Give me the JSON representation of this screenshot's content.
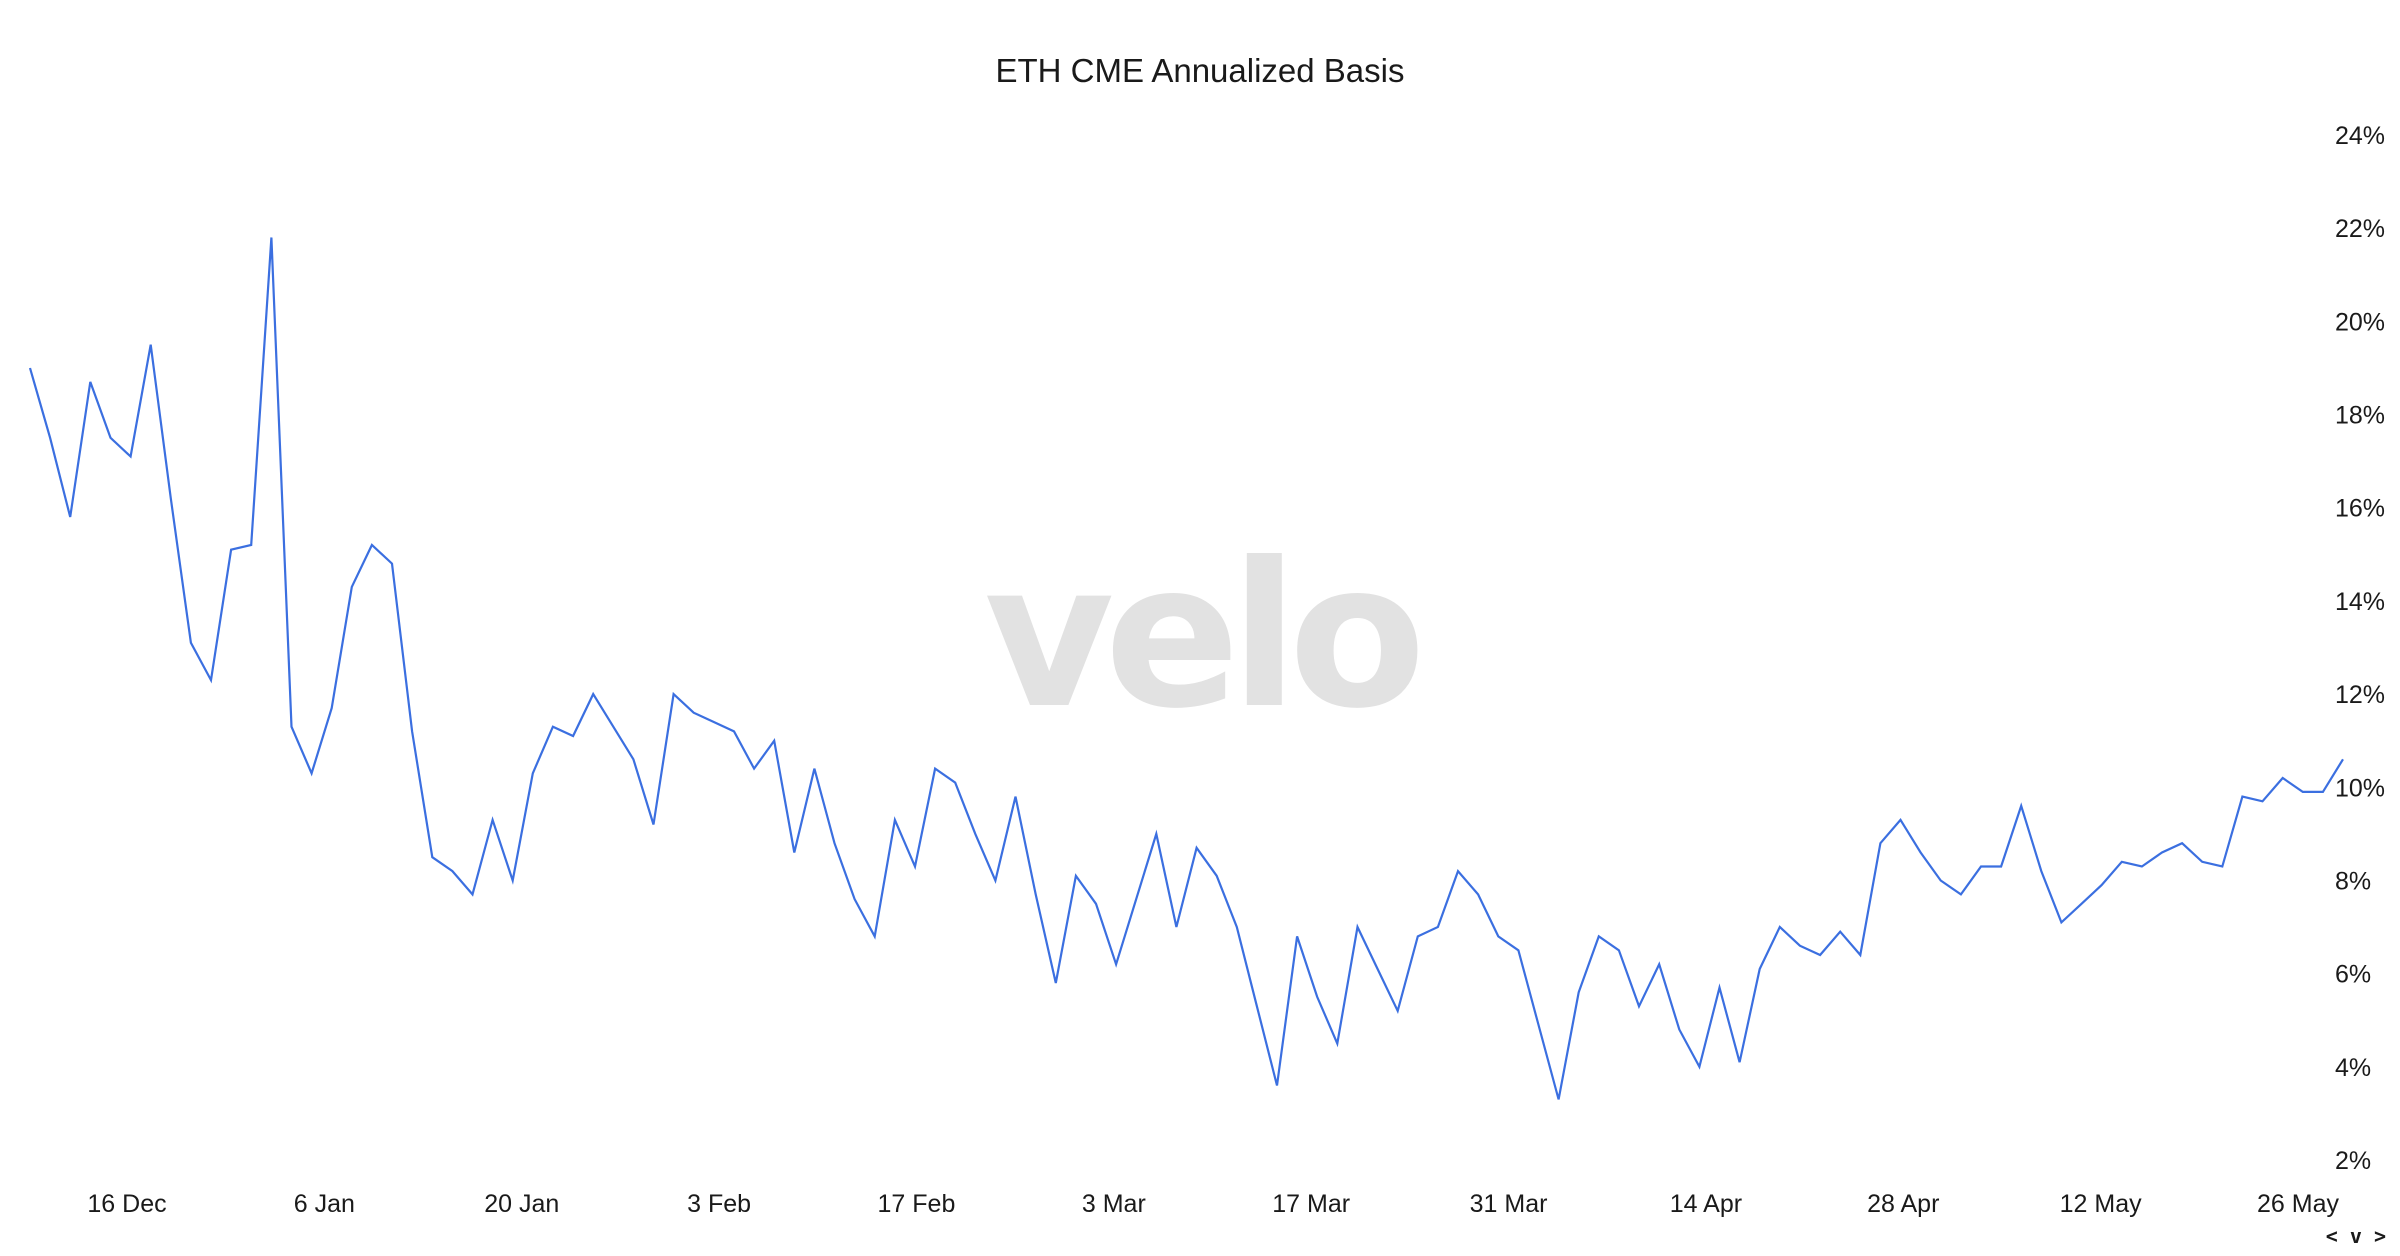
{
  "chart_data": {
    "type": "line",
    "title": "ETH CME Annualized Basis",
    "xlabel": "",
    "ylabel": "",
    "watermark": "velo",
    "line_color": "#3b6fe0",
    "ylim": [
      2,
      24
    ],
    "yticks": [
      "2%",
      "4%",
      "6%",
      "8%",
      "10%",
      "12%",
      "14%",
      "16%",
      "18%",
      "20%",
      "22%",
      "24%"
    ],
    "xticks": [
      "16 Dec",
      "6 Jan",
      "20 Jan",
      "3 Feb",
      "17 Feb",
      "3 Mar",
      "17 Mar",
      "31 Mar",
      "14 Apr",
      "28 Apr",
      "12 May",
      "26 May"
    ],
    "grid": false,
    "series": [
      {
        "values": [
          19.0,
          17.5,
          15.8,
          18.7,
          17.5,
          17.1,
          19.5,
          16.2,
          13.1,
          12.3,
          15.1,
          15.2,
          21.8,
          11.3,
          10.3,
          11.7,
          14.3,
          15.2,
          14.8,
          11.2,
          8.5,
          8.2,
          7.7,
          9.3,
          8.0,
          10.3,
          11.3,
          11.1,
          12.0,
          11.3,
          10.6,
          9.2,
          12.0,
          11.6,
          11.4,
          11.2,
          10.4,
          11.0,
          8.6,
          10.4,
          8.8,
          7.6,
          6.8,
          9.3,
          8.3,
          10.4,
          10.1,
          9.0,
          8.0,
          9.8,
          7.7,
          5.8,
          8.1,
          7.5,
          6.2,
          7.6,
          9.0,
          7.0,
          8.7,
          8.1,
          7.0,
          5.3,
          3.6,
          6.8,
          5.5,
          4.5,
          7.0,
          6.1,
          5.2,
          6.8,
          7.0,
          8.2,
          7.7,
          6.8,
          6.5,
          4.9,
          3.3,
          5.6,
          6.8,
          6.5,
          5.3,
          6.2,
          4.8,
          4.0,
          5.7,
          4.1,
          6.1,
          7.0,
          6.6,
          6.4,
          6.9,
          6.4,
          8.8,
          9.3,
          8.6,
          8.0,
          7.7,
          8.3,
          8.3,
          9.6,
          8.2,
          7.1,
          7.5,
          7.9,
          8.4,
          8.3,
          8.6,
          8.8,
          8.4,
          8.3,
          9.8,
          9.7,
          10.2,
          9.9,
          9.9,
          10.6
        ]
      }
    ]
  },
  "nav": {
    "arrows": "< v >"
  }
}
